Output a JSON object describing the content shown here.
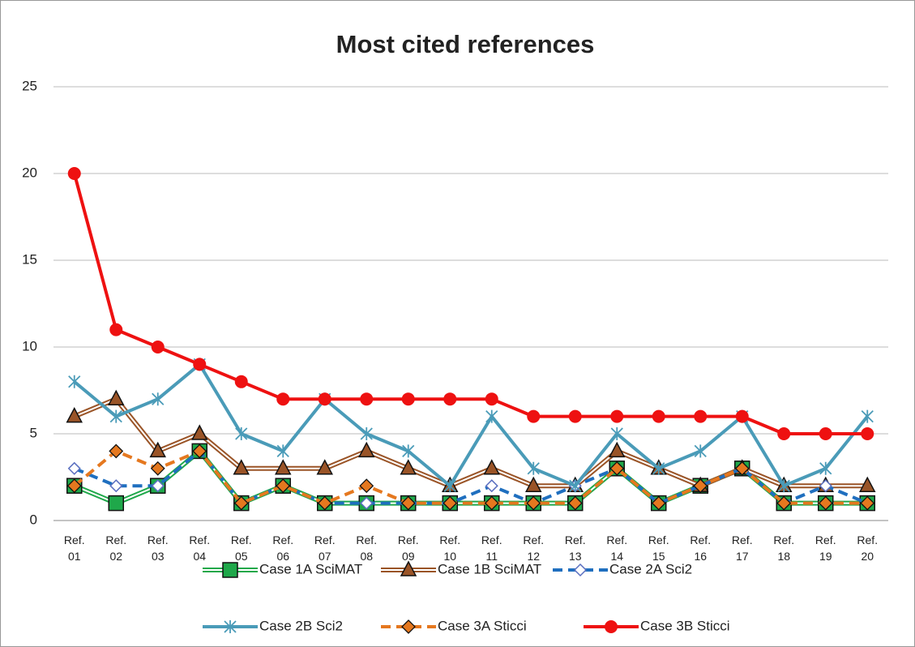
{
  "chart_data": {
    "type": "line",
    "title": "Most cited references",
    "categories": [
      "Ref. 01",
      "Ref. 02",
      "Ref. 03",
      "Ref. 04",
      "Ref. 05",
      "Ref. 06",
      "Ref. 07",
      "Ref. 08",
      "Ref. 09",
      "Ref. 10",
      "Ref. 11",
      "Ref. 12",
      "Ref. 13",
      "Ref. 14",
      "Ref. 15",
      "Ref. 16",
      "Ref. 17",
      "Ref. 18",
      "Ref. 19",
      "Ref. 20"
    ],
    "ylim": [
      0,
      25
    ],
    "yticks": [
      0,
      5,
      10,
      15,
      20,
      25
    ],
    "grid": true,
    "series": [
      {
        "name": "Case 1A SciMAT",
        "color": "#1fa84a",
        "marker": "square",
        "line": "double",
        "values": [
          2,
          1,
          2,
          4,
          1,
          2,
          1,
          1,
          1,
          1,
          1,
          1,
          1,
          3,
          1,
          2,
          3,
          1,
          1,
          1
        ]
      },
      {
        "name": "Case 1B SciMAT",
        "color": "#9a5427",
        "marker": "triangle",
        "line": "double",
        "values": [
          6,
          7,
          4,
          5,
          3,
          3,
          3,
          4,
          3,
          2,
          3,
          2,
          2,
          4,
          3,
          2,
          3,
          2,
          2,
          2
        ]
      },
      {
        "name": "Case 2A Sci2",
        "color": "#1f6fbf",
        "marker": "diamond-open",
        "line": "dashed",
        "values": [
          3,
          2,
          2,
          4,
          1,
          2,
          1,
          1,
          1,
          1,
          2,
          1,
          2,
          3,
          1,
          2,
          3,
          1,
          2,
          1
        ]
      },
      {
        "name": "Case 2B Sci2",
        "color": "#4a9bb8",
        "marker": "star",
        "line": "solid",
        "values": [
          8,
          6,
          7,
          9,
          5,
          4,
          7,
          5,
          4,
          2,
          6,
          3,
          2,
          5,
          3,
          4,
          6,
          2,
          3,
          6
        ]
      },
      {
        "name": "Case 3A Sticci",
        "color": "#e5781f",
        "marker": "diamond",
        "line": "dashed",
        "values": [
          2,
          4,
          3,
          4,
          1,
          2,
          1,
          2,
          1,
          1,
          1,
          1,
          1,
          3,
          1,
          2,
          3,
          1,
          1,
          1
        ]
      },
      {
        "name": "Case 3B Sticci",
        "color": "#ee1111",
        "marker": "circle",
        "line": "solid",
        "values": [
          20,
          11,
          10,
          9,
          8,
          7,
          7,
          7,
          7,
          7,
          7,
          6,
          6,
          6,
          6,
          6,
          6,
          5,
          5,
          5
        ]
      }
    ]
  }
}
